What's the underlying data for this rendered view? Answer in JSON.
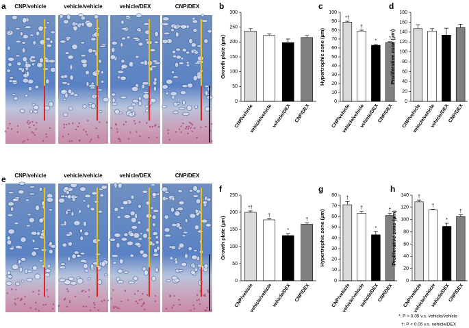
{
  "figure": {
    "panels": [
      {
        "label": "a",
        "images": [
          "CNP/vehicle",
          "vehicle/vehicle",
          "vehicle/DEX",
          "CNP/DEX"
        ]
      },
      {
        "label": "e",
        "images": [
          "CNP/vehicle",
          "vehicle/vehicle",
          "vehicle/DEX",
          "CNP/DEX"
        ]
      }
    ],
    "footnotes": [
      "*: P < 0.05 v.s. vehicle/vehicle",
      "†: P < 0.05 v.s. vehicle/DEX"
    ]
  },
  "chart_data": [
    {
      "type": "bar",
      "panel_label": "b",
      "y_label": "Growth plate (µm)",
      "categories": [
        "CNP/vehicle",
        "vehicle/vehicle",
        "vehicle/DEX",
        "CNP/DEX"
      ],
      "values": [
        237,
        222,
        198,
        215
      ],
      "errors": [
        8,
        5,
        12,
        7
      ],
      "colors": [
        "#d9d9d9",
        "#ffffff",
        "#000000",
        "#808080"
      ],
      "ylim": [
        0,
        300
      ],
      "yticks": [
        0,
        50,
        100,
        150,
        200,
        250,
        300
      ]
    },
    {
      "type": "bar",
      "panel_label": "c",
      "y_label": "Hypertrophic zone (µm)",
      "categories": [
        "CNP/vehicle",
        "vehicle/vehicle",
        "vehicle/DEX",
        "CNP/DEX"
      ],
      "values": [
        89,
        79,
        63,
        66
      ],
      "errors": [
        1,
        1,
        1,
        1
      ],
      "annotations": [
        "*†",
        "†",
        "*",
        "*"
      ],
      "colors": [
        "#d9d9d9",
        "#ffffff",
        "#000000",
        "#808080"
      ],
      "ylim": [
        0,
        100
      ],
      "yticks": [
        0,
        10,
        20,
        30,
        40,
        50,
        60,
        70,
        80,
        90,
        100
      ]
    },
    {
      "type": "bar",
      "panel_label": "d",
      "y_label": "Proliferative zone (µm)",
      "categories": [
        "CNP/vehicle",
        "vehicle/vehicle",
        "vehicle/DEX",
        "CNP/DEX"
      ],
      "values": [
        147,
        142,
        134,
        149
      ],
      "errors": [
        8,
        5,
        14,
        7
      ],
      "colors": [
        "#d9d9d9",
        "#ffffff",
        "#000000",
        "#808080"
      ],
      "ylim": [
        0,
        180
      ],
      "yticks": [
        0,
        20,
        40,
        60,
        80,
        100,
        120,
        140,
        160,
        180
      ]
    },
    {
      "type": "bar",
      "panel_label": "f",
      "y_label": "Growth plate (µm)",
      "categories": [
        "CNP/vehicle",
        "vehicle/vehicle",
        "vehicle/DEX",
        "CNP/DEX"
      ],
      "values": [
        200,
        178,
        132,
        165
      ],
      "errors": [
        4,
        3,
        6,
        4
      ],
      "annotations": [
        "*†",
        "†",
        "*",
        "†"
      ],
      "colors": [
        "#d9d9d9",
        "#ffffff",
        "#000000",
        "#808080"
      ],
      "ylim": [
        0,
        250
      ],
      "yticks": [
        0,
        50,
        100,
        150,
        200,
        250
      ]
    },
    {
      "type": "bar",
      "panel_label": "g",
      "y_label": "Hypertrophic zone (µm)",
      "categories": [
        "CNP/vehicle",
        "vehicle/vehicle",
        "vehicle/DEX",
        "CNP/DEX"
      ],
      "values": [
        71,
        63,
        43,
        61
      ],
      "errors": [
        3,
        2,
        3,
        2
      ],
      "annotations": [
        "†",
        "†",
        "*",
        "†"
      ],
      "colors": [
        "#d9d9d9",
        "#ffffff",
        "#000000",
        "#808080"
      ],
      "ylim": [
        0,
        80
      ],
      "yticks": [
        0,
        10,
        20,
        30,
        40,
        50,
        60,
        70,
        80
      ]
    },
    {
      "type": "bar",
      "panel_label": "h",
      "y_label": "Proliferative zone (µm)",
      "categories": [
        "CNP/vehicle",
        "vehicle/vehicle",
        "vehicle/DEX",
        "CNP/DEX"
      ],
      "values": [
        129,
        116,
        89,
        105
      ],
      "errors": [
        3,
        1,
        5,
        3
      ],
      "annotations": [
        "†",
        "†",
        "*",
        "†"
      ],
      "colors": [
        "#d9d9d9",
        "#ffffff",
        "#000000",
        "#808080"
      ],
      "ylim": [
        0,
        140
      ],
      "yticks": [
        0,
        20,
        40,
        60,
        80,
        100,
        120,
        140
      ]
    }
  ]
}
